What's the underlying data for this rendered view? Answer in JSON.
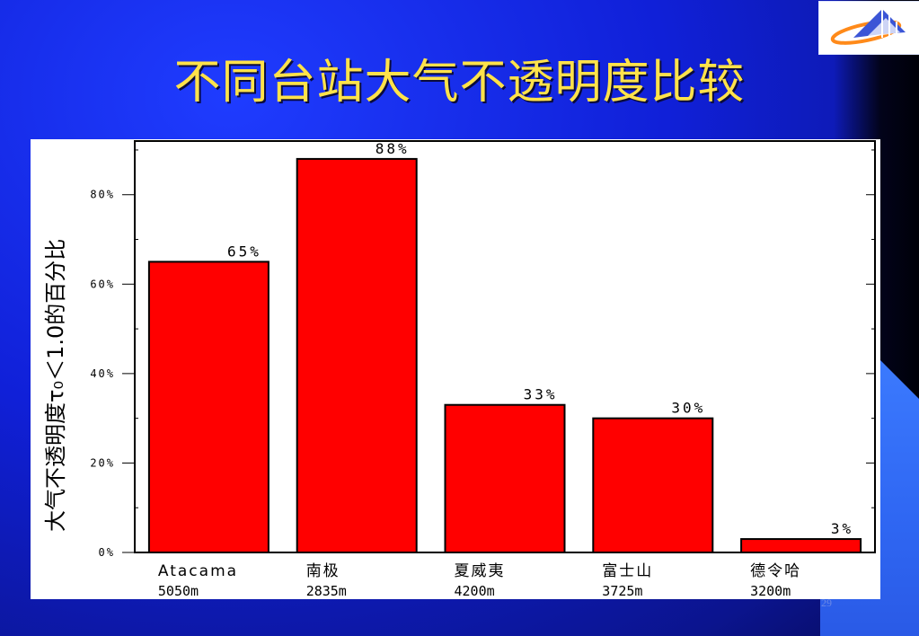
{
  "slide": {
    "title": "不同台站大气不透明度比较",
    "page_number": "29"
  },
  "chart_data": {
    "type": "bar",
    "title": "",
    "ylabel": "大气不透明度τ₀＜1.0的百分比",
    "xlabel": "",
    "ylim": [
      0,
      92
    ],
    "yticks": [
      {
        "value": 0,
        "label": "0%"
      },
      {
        "value": 20,
        "label": "20%"
      },
      {
        "value": 40,
        "label": "40%"
      },
      {
        "value": 60,
        "label": "60%"
      },
      {
        "value": 80,
        "label": "80%"
      }
    ],
    "categories": [
      {
        "name": "Atacama",
        "altitude": "5050m"
      },
      {
        "name": "南极",
        "altitude": "2835m"
      },
      {
        "name": "夏威夷",
        "altitude": "4200m"
      },
      {
        "name": "富士山",
        "altitude": "3725m"
      },
      {
        "name": "德令哈",
        "altitude": "3200m"
      }
    ],
    "values": [
      65,
      88,
      33,
      30,
      3
    ],
    "value_labels": [
      "65%",
      "88%",
      "33%",
      "30%",
      "3%"
    ],
    "bar_color": "#ff0000",
    "grid": false
  }
}
